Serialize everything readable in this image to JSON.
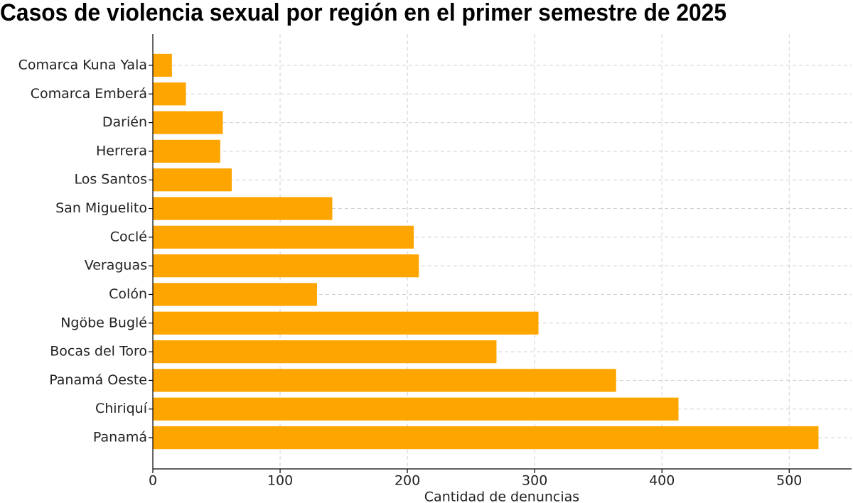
{
  "chart_data": {
    "type": "barh",
    "title": "Casos de violencia sexual por región en el primer semestre de 2025",
    "xlabel": "Cantidad de denuncias",
    "categories": [
      "Comarca Kuna Yala",
      "Comarca Emberá",
      "Darién",
      "Herrera",
      "Los Santos",
      "San Miguelito",
      "Coclé",
      "Veraguas",
      "Colón",
      "Ngöbe Buglé",
      "Bocas del Toro",
      "Panamá Oeste",
      "Chiriquí",
      "Panamá"
    ],
    "values": [
      15,
      26,
      55,
      53,
      62,
      141,
      205,
      209,
      129,
      303,
      270,
      364,
      413,
      523
    ],
    "color": "#ffa500",
    "xlim": [
      0,
      549
    ],
    "xticks": [
      0,
      100,
      200,
      300,
      400,
      500
    ],
    "grid": true
  }
}
